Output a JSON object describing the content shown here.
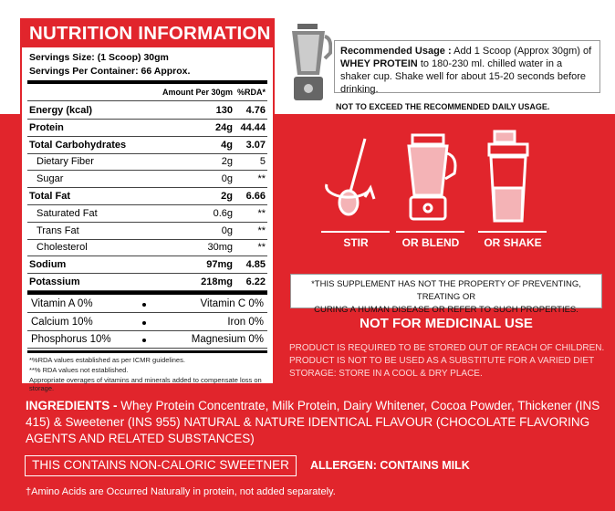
{
  "nutrition": {
    "title": "NUTRITION INFORMATION",
    "serving_size": "Servings Size: (1 Scoop) 30gm",
    "servings_per_container": "Servings Per Container: 66 Approx.",
    "header": {
      "amount": "Amount Per 30gm",
      "rda": "%RDA*"
    },
    "rows": [
      {
        "name": "Energy (kcal)",
        "amount": "130",
        "rda": "4.76"
      },
      {
        "name": "Protein",
        "amount": "24g",
        "rda": "44.44"
      },
      {
        "name": "Total Carbohydrates",
        "amount": "4g",
        "rda": "3.07"
      },
      {
        "name": "Dietary Fiber",
        "amount": "2g",
        "rda": "5"
      },
      {
        "name": "Sugar",
        "amount": "0g",
        "rda": "**"
      },
      {
        "name": "Total Fat",
        "amount": "2g",
        "rda": "6.66"
      },
      {
        "name": "Saturated Fat",
        "amount": "0.6g",
        "rda": "**"
      },
      {
        "name": "Trans Fat",
        "amount": "0g",
        "rda": "**"
      },
      {
        "name": "Cholesterol",
        "amount": "30mg",
        "rda": "**"
      },
      {
        "name": "Sodium",
        "amount": "97mg",
        "rda": "4.85"
      },
      {
        "name": "Potassium",
        "amount": "218mg",
        "rda": "6.22"
      }
    ],
    "vitamins": [
      [
        "Vitamin A 0%",
        "Vitamin C 0%"
      ],
      [
        "Calcium 10%",
        "Iron 0%"
      ],
      [
        "Phosphorus 10%",
        "Magnesium 0%"
      ]
    ],
    "footnotes": [
      "*%RDA values established as per ICMR guidelines.",
      "**% RDA values not established.",
      "Appropriate overages of vitamins and minerals added to compensate loss on storage."
    ]
  },
  "usage": {
    "label": "Recommended Usage :",
    "text1": "Add 1 Scoop (Approx 30gm) of",
    "bold": "WHEY PROTEIN",
    "text2": "to 180-230 ml. chilled water in a shaker cup. Shake well for about 15-20 seconds before drinking.",
    "limit": "NOT TO EXCEED THE RECOMMENDED DAILY USAGE."
  },
  "methods": [
    "STIR",
    "OR BLEND",
    "OR SHAKE"
  ],
  "disclaimer": [
    "*THIS SUPPLEMENT HAS NOT THE PROPERTY OF PREVENTING, TREATING OR",
    "CURING A HUMAN DISEASE OR REFER TO SUCH PROPERTIES."
  ],
  "medicinal": {
    "title": "NOT FOR MEDICINAL USE",
    "lines": [
      "PRODUCT IS REQUIRED TO BE STORED OUT OF REACH OF CHILDREN.",
      "PRODUCT IS NOT TO BE USED AS A SUBSTITUTE FOR A VARIED DIET",
      "STORAGE: STORE IN A COOL & DRY PLACE."
    ]
  },
  "ingredients": {
    "label": "INGREDIENTS -",
    "text": "Whey Protein Concentrate, Milk Protein, Dairy Whitener, Cocoa Powder, Thickener (INS 415) & Sweetener (INS 955) NATURAL & NATURE IDENTICAL FLAVOUR (CHOCOLATE FLAVORING AGENTS AND RELATED SUBSTANCES)"
  },
  "sweetener": "THIS CONTAINS NON-CALORIC SWEETNER",
  "allergen": "ALLERGEN: CONTAINS MILK",
  "footnote": "†Amino Acids are Occurred Naturally in protein, not added separately."
}
